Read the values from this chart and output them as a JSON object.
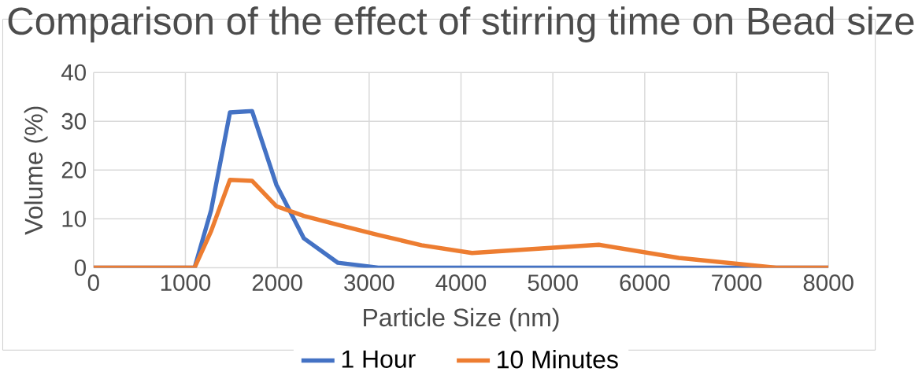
{
  "chart_data": {
    "type": "line",
    "title": "Comparison of the effect of stirring time on Bead size",
    "xlabel": "Particle Size (nm)",
    "ylabel": "Volume (%)",
    "xlim": [
      0,
      8000
    ],
    "xticks": [
      0,
      1000,
      2000,
      3000,
      4000,
      5000,
      6000,
      7000,
      8000
    ],
    "ylim": [
      0,
      40
    ],
    "yticks": [
      0,
      10,
      20,
      30,
      40
    ],
    "grid": true,
    "legend": "bottom",
    "marker": "none",
    "series": [
      {
        "name": "1 Hour",
        "color": "#4472c4",
        "x": [
          0,
          1100,
          1280,
          1485,
          1725,
          1990,
          2290,
          2660,
          3100,
          3570,
          4120,
          5500,
          6370,
          7430,
          8000
        ],
        "values": [
          0,
          0,
          11.8,
          31.8,
          32.1,
          17,
          6,
          1,
          0,
          0,
          0,
          0,
          0,
          0,
          0
        ]
      },
      {
        "name": "10 Minutes",
        "color": "#ed7d31",
        "x": [
          0,
          1100,
          1280,
          1485,
          1725,
          1990,
          2290,
          2660,
          3100,
          3570,
          4120,
          5500,
          6370,
          7430,
          8000
        ],
        "values": [
          0,
          0,
          7.5,
          18,
          17.8,
          12.6,
          10.6,
          8.8,
          6.7,
          4.6,
          3.0,
          4.7,
          2.0,
          0,
          0
        ]
      }
    ]
  }
}
